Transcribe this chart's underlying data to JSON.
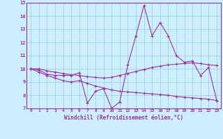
{
  "title": "",
  "xlabel": "Windchill (Refroidissement éolien,°C)",
  "ylabel": "",
  "background_color": "#cceeff",
  "line_color": "#993399",
  "grid_color": "#99cccc",
  "text_color": "#993399",
  "xlim": [
    -0.5,
    23.5
  ],
  "ylim": [
    7,
    15
  ],
  "yticks": [
    7,
    8,
    9,
    10,
    11,
    12,
    13,
    14,
    15
  ],
  "xticks": [
    0,
    1,
    2,
    3,
    4,
    5,
    6,
    7,
    8,
    9,
    10,
    11,
    12,
    13,
    14,
    15,
    16,
    17,
    18,
    19,
    20,
    21,
    22,
    23
  ],
  "series1_x": [
    0,
    1,
    2,
    3,
    4,
    5,
    6,
    7,
    8,
    9,
    10,
    11,
    12,
    13,
    14,
    15,
    16,
    17,
    18,
    19,
    20,
    21,
    22,
    23
  ],
  "series1_y": [
    10.0,
    9.9,
    9.6,
    9.5,
    9.5,
    9.5,
    9.7,
    7.4,
    8.3,
    8.5,
    7.0,
    7.5,
    10.3,
    12.5,
    14.8,
    12.5,
    13.5,
    12.5,
    11.0,
    10.5,
    10.6,
    9.5,
    10.1,
    7.6
  ],
  "series2_x": [
    0,
    1,
    2,
    3,
    4,
    5,
    6,
    7,
    8,
    9,
    10,
    11,
    12,
    13,
    14,
    15,
    16,
    17,
    18,
    19,
    20,
    21,
    22,
    23
  ],
  "series2_y": [
    10.0,
    10.0,
    9.85,
    9.75,
    9.65,
    9.55,
    9.5,
    9.4,
    9.35,
    9.3,
    9.35,
    9.5,
    9.65,
    9.8,
    9.95,
    10.1,
    10.2,
    10.3,
    10.35,
    10.4,
    10.45,
    10.4,
    10.3,
    10.25
  ],
  "series3_x": [
    0,
    1,
    2,
    3,
    4,
    5,
    6,
    7,
    8,
    9,
    10,
    11,
    12,
    13,
    14,
    15,
    16,
    17,
    18,
    19,
    20,
    21,
    22,
    23
  ],
  "series3_y": [
    10.0,
    9.75,
    9.5,
    9.3,
    9.1,
    9.0,
    9.1,
    8.9,
    8.7,
    8.55,
    8.4,
    8.3,
    8.25,
    8.2,
    8.15,
    8.1,
    8.05,
    8.0,
    7.9,
    7.85,
    7.8,
    7.75,
    7.7,
    7.6
  ]
}
